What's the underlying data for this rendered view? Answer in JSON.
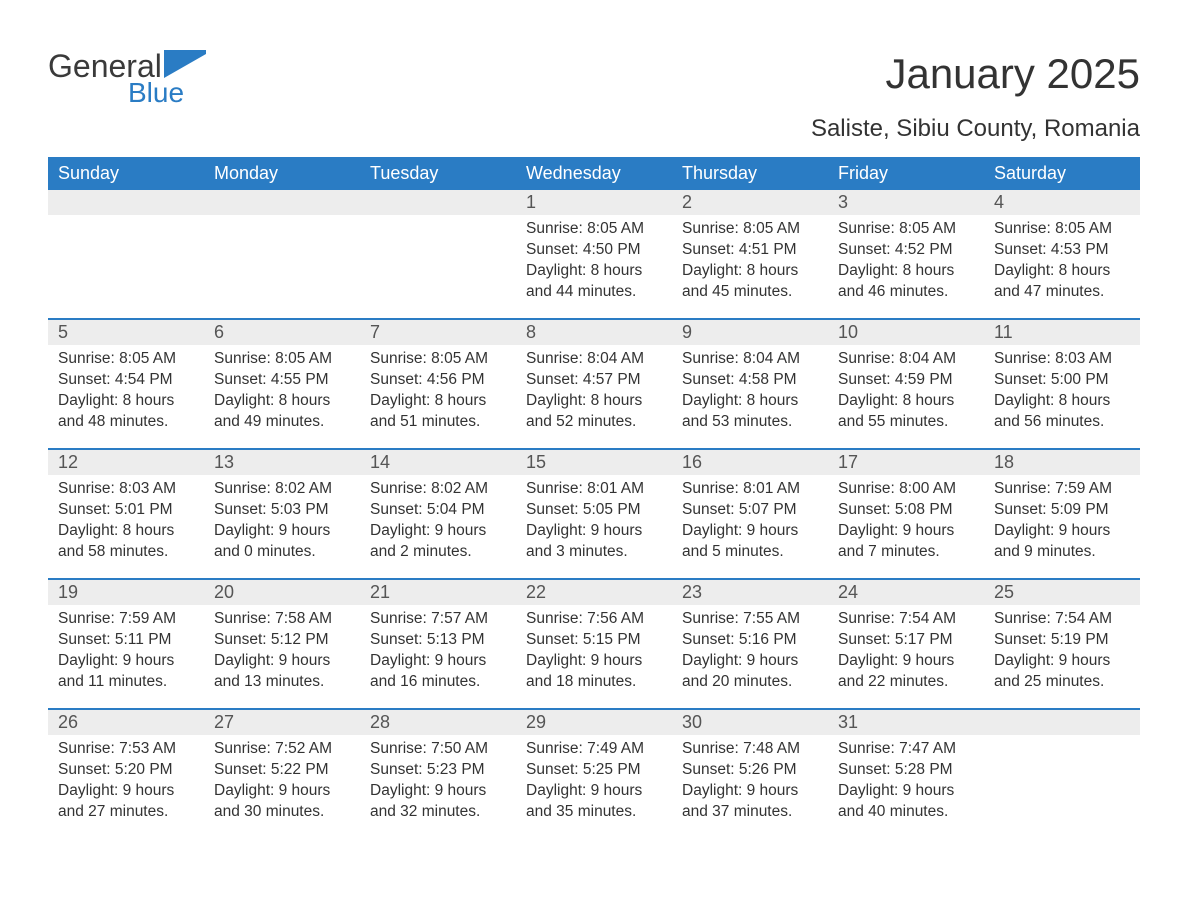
{
  "brand": {
    "line1": "General",
    "line2": "Blue"
  },
  "title": "January 2025",
  "location": "Saliste, Sibiu County, Romania",
  "colors": {
    "header_bg": "#2a7cc4",
    "header_text": "#ffffff",
    "daynum_bg": "#ededed",
    "week_border": "#2a7cc4",
    "body_text": "#333333",
    "page_bg": "#ffffff",
    "brand_blue": "#2a7cc4"
  },
  "layout": {
    "columns": 7,
    "rows": 5,
    "font_family": "Arial",
    "title_fontsize": 42,
    "location_fontsize": 24,
    "header_fontsize": 18,
    "daynum_fontsize": 18,
    "body_fontsize": 15.5
  },
  "weekdays": [
    "Sunday",
    "Monday",
    "Tuesday",
    "Wednesday",
    "Thursday",
    "Friday",
    "Saturday"
  ],
  "labels": {
    "sunrise": "Sunrise:",
    "sunset": "Sunset:",
    "daylight": "Daylight:"
  },
  "weeks": [
    [
      {
        "n": "",
        "empty": true
      },
      {
        "n": "",
        "empty": true
      },
      {
        "n": "",
        "empty": true
      },
      {
        "n": "1",
        "sunrise": "8:05 AM",
        "sunset": "4:50 PM",
        "daylight": "8 hours and 44 minutes."
      },
      {
        "n": "2",
        "sunrise": "8:05 AM",
        "sunset": "4:51 PM",
        "daylight": "8 hours and 45 minutes."
      },
      {
        "n": "3",
        "sunrise": "8:05 AM",
        "sunset": "4:52 PM",
        "daylight": "8 hours and 46 minutes."
      },
      {
        "n": "4",
        "sunrise": "8:05 AM",
        "sunset": "4:53 PM",
        "daylight": "8 hours and 47 minutes."
      }
    ],
    [
      {
        "n": "5",
        "sunrise": "8:05 AM",
        "sunset": "4:54 PM",
        "daylight": "8 hours and 48 minutes."
      },
      {
        "n": "6",
        "sunrise": "8:05 AM",
        "sunset": "4:55 PM",
        "daylight": "8 hours and 49 minutes."
      },
      {
        "n": "7",
        "sunrise": "8:05 AM",
        "sunset": "4:56 PM",
        "daylight": "8 hours and 51 minutes."
      },
      {
        "n": "8",
        "sunrise": "8:04 AM",
        "sunset": "4:57 PM",
        "daylight": "8 hours and 52 minutes."
      },
      {
        "n": "9",
        "sunrise": "8:04 AM",
        "sunset": "4:58 PM",
        "daylight": "8 hours and 53 minutes."
      },
      {
        "n": "10",
        "sunrise": "8:04 AM",
        "sunset": "4:59 PM",
        "daylight": "8 hours and 55 minutes."
      },
      {
        "n": "11",
        "sunrise": "8:03 AM",
        "sunset": "5:00 PM",
        "daylight": "8 hours and 56 minutes."
      }
    ],
    [
      {
        "n": "12",
        "sunrise": "8:03 AM",
        "sunset": "5:01 PM",
        "daylight": "8 hours and 58 minutes."
      },
      {
        "n": "13",
        "sunrise": "8:02 AM",
        "sunset": "5:03 PM",
        "daylight": "9 hours and 0 minutes."
      },
      {
        "n": "14",
        "sunrise": "8:02 AM",
        "sunset": "5:04 PM",
        "daylight": "9 hours and 2 minutes."
      },
      {
        "n": "15",
        "sunrise": "8:01 AM",
        "sunset": "5:05 PM",
        "daylight": "9 hours and 3 minutes."
      },
      {
        "n": "16",
        "sunrise": "8:01 AM",
        "sunset": "5:07 PM",
        "daylight": "9 hours and 5 minutes."
      },
      {
        "n": "17",
        "sunrise": "8:00 AM",
        "sunset": "5:08 PM",
        "daylight": "9 hours and 7 minutes."
      },
      {
        "n": "18",
        "sunrise": "7:59 AM",
        "sunset": "5:09 PM",
        "daylight": "9 hours and 9 minutes."
      }
    ],
    [
      {
        "n": "19",
        "sunrise": "7:59 AM",
        "sunset": "5:11 PM",
        "daylight": "9 hours and 11 minutes."
      },
      {
        "n": "20",
        "sunrise": "7:58 AM",
        "sunset": "5:12 PM",
        "daylight": "9 hours and 13 minutes."
      },
      {
        "n": "21",
        "sunrise": "7:57 AM",
        "sunset": "5:13 PM",
        "daylight": "9 hours and 16 minutes."
      },
      {
        "n": "22",
        "sunrise": "7:56 AM",
        "sunset": "5:15 PM",
        "daylight": "9 hours and 18 minutes."
      },
      {
        "n": "23",
        "sunrise": "7:55 AM",
        "sunset": "5:16 PM",
        "daylight": "9 hours and 20 minutes."
      },
      {
        "n": "24",
        "sunrise": "7:54 AM",
        "sunset": "5:17 PM",
        "daylight": "9 hours and 22 minutes."
      },
      {
        "n": "25",
        "sunrise": "7:54 AM",
        "sunset": "5:19 PM",
        "daylight": "9 hours and 25 minutes."
      }
    ],
    [
      {
        "n": "26",
        "sunrise": "7:53 AM",
        "sunset": "5:20 PM",
        "daylight": "9 hours and 27 minutes."
      },
      {
        "n": "27",
        "sunrise": "7:52 AM",
        "sunset": "5:22 PM",
        "daylight": "9 hours and 30 minutes."
      },
      {
        "n": "28",
        "sunrise": "7:50 AM",
        "sunset": "5:23 PM",
        "daylight": "9 hours and 32 minutes."
      },
      {
        "n": "29",
        "sunrise": "7:49 AM",
        "sunset": "5:25 PM",
        "daylight": "9 hours and 35 minutes."
      },
      {
        "n": "30",
        "sunrise": "7:48 AM",
        "sunset": "5:26 PM",
        "daylight": "9 hours and 37 minutes."
      },
      {
        "n": "31",
        "sunrise": "7:47 AM",
        "sunset": "5:28 PM",
        "daylight": "9 hours and 40 minutes."
      },
      {
        "n": "",
        "empty": true
      }
    ]
  ]
}
